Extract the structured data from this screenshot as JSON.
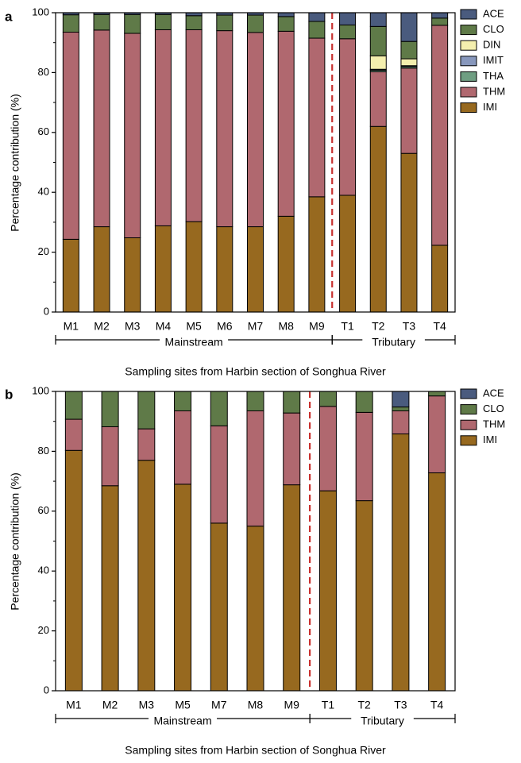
{
  "colors": {
    "ACE": "#4a5b7e",
    "CLO": "#5f7a48",
    "DIN": "#f4efae",
    "IMIT": "#8797bc",
    "THA": "#6f9e82",
    "THM": "#b0686f",
    "IMI": "#97691f",
    "dashed_line": "#c8312f"
  },
  "chart_data": [
    {
      "type": "bar",
      "stacked": true,
      "panel_label": "a",
      "title": "",
      "xlabel": "Sampling sites from Harbin section of Songhua River",
      "ylabel": "Percentage contribution (%)",
      "ylim": [
        0,
        100
      ],
      "yticks": [
        "0",
        "20",
        "40",
        "60",
        "80",
        "100"
      ],
      "categories": [
        "M1",
        "M2",
        "M3",
        "M4",
        "M5",
        "M6",
        "M7",
        "M8",
        "M9",
        "T1",
        "T2",
        "T3",
        "T4"
      ],
      "groups": [
        {
          "label": "Mainstream",
          "from": 0,
          "to": 8
        },
        {
          "label": "Tributary",
          "from": 9,
          "to": 12
        }
      ],
      "divider_after_index": 8,
      "legend_position": "top-right",
      "legend": [
        "ACE",
        "CLO",
        "DIN",
        "IMIT",
        "THA",
        "THM",
        "IMI"
      ],
      "series": [
        {
          "name": "IMI",
          "values": [
            24.3,
            28.5,
            24.8,
            28.8,
            30.2,
            28.5,
            28.5,
            32.0,
            38.5,
            39.0,
            62.0,
            53.0,
            22.3
          ]
        },
        {
          "name": "THM",
          "values": [
            69.2,
            65.7,
            68.3,
            65.5,
            64.1,
            65.5,
            64.9,
            61.8,
            53.0,
            52.3,
            18.3,
            28.5,
            73.5
          ]
        },
        {
          "name": "THA",
          "values": [
            0.0,
            0.0,
            0.0,
            0.0,
            0.0,
            0.0,
            0.0,
            0.0,
            0.0,
            0.0,
            0.5,
            0.5,
            0.0
          ]
        },
        {
          "name": "IMIT",
          "values": [
            0.0,
            0.0,
            0.0,
            0.0,
            0.0,
            0.0,
            0.0,
            0.0,
            0.0,
            0.0,
            0.3,
            0.3,
            0.0
          ]
        },
        {
          "name": "DIN",
          "values": [
            0.0,
            0.0,
            0.0,
            0.0,
            0.0,
            0.0,
            0.0,
            0.0,
            0.0,
            0.0,
            4.5,
            2.3,
            0.0
          ]
        },
        {
          "name": "CLO",
          "values": [
            5.8,
            5.2,
            6.3,
            5.1,
            4.7,
            5.2,
            5.8,
            4.9,
            5.6,
            4.6,
            9.8,
            5.8,
            2.4
          ]
        },
        {
          "name": "ACE",
          "values": [
            0.7,
            0.6,
            0.6,
            0.6,
            1.0,
            0.8,
            0.8,
            1.3,
            2.9,
            4.1,
            4.6,
            9.6,
            1.8
          ]
        }
      ]
    },
    {
      "type": "bar",
      "stacked": true,
      "panel_label": "b",
      "title": "",
      "xlabel": "Sampling sites from Harbin section of Songhua River",
      "ylabel": "Percentage contribution (%)",
      "ylim": [
        0,
        100
      ],
      "yticks": [
        "0",
        "20",
        "40",
        "60",
        "80",
        "100"
      ],
      "categories": [
        "M1",
        "M2",
        "M3",
        "M5",
        "M7",
        "M8",
        "M9",
        "T1",
        "T2",
        "T3",
        "T4"
      ],
      "groups": [
        {
          "label": "Mainstream",
          "from": 0,
          "to": 6
        },
        {
          "label": "Tributary",
          "from": 7,
          "to": 10
        }
      ],
      "divider_after_index": 6,
      "legend_position": "top-right",
      "legend": [
        "ACE",
        "CLO",
        "THM",
        "IMI"
      ],
      "series": [
        {
          "name": "IMI",
          "values": [
            80.3,
            68.5,
            77.0,
            69.0,
            56.0,
            55.0,
            68.8,
            66.8,
            63.5,
            85.8,
            72.8
          ]
        },
        {
          "name": "THM",
          "values": [
            10.4,
            19.7,
            10.5,
            24.5,
            32.5,
            38.5,
            24.0,
            28.2,
            29.5,
            7.7,
            25.7
          ]
        },
        {
          "name": "CLO",
          "values": [
            9.3,
            11.8,
            12.5,
            6.5,
            11.5,
            6.5,
            7.2,
            5.0,
            7.0,
            1.3,
            1.5
          ]
        },
        {
          "name": "ACE",
          "values": [
            0.0,
            0.0,
            0.0,
            0.0,
            0.0,
            0.0,
            0.0,
            0.0,
            0.0,
            5.2,
            0.0
          ]
        }
      ]
    }
  ]
}
